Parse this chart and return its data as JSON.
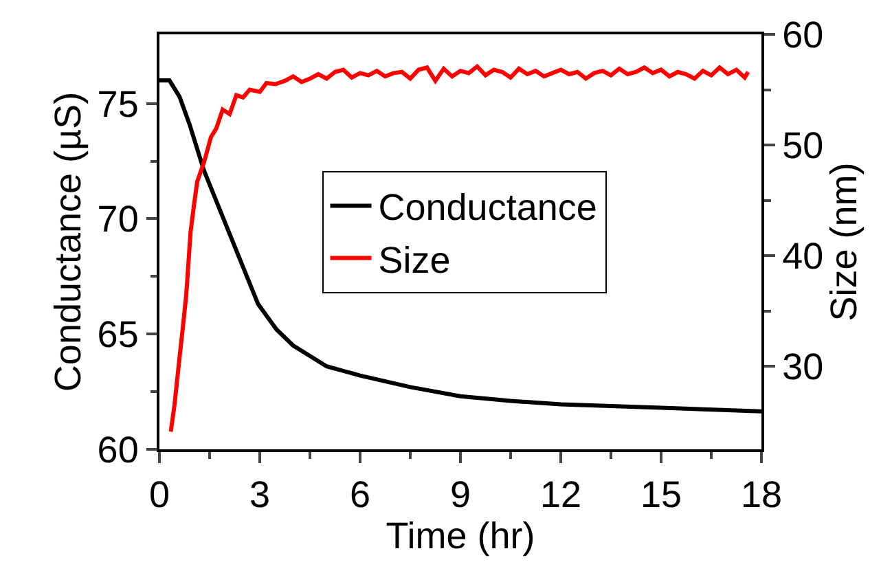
{
  "chart_data": {
    "type": "line",
    "xlabel": "Time (hr)",
    "ylabel": "Conductance (µS)",
    "y2label": "Size (nm)",
    "xlim": [
      0,
      18
    ],
    "xticks": [
      0,
      3,
      6,
      9,
      12,
      15,
      18
    ],
    "ylim": [
      60,
      78
    ],
    "yticks": [
      60,
      65,
      70,
      75
    ],
    "y2lim": [
      22.5,
      60
    ],
    "y2ticks": [
      30,
      40,
      50,
      60
    ],
    "grid": false,
    "legend": "right",
    "marker": "none",
    "line_style": "solid",
    "series": [
      {
        "name": "Conductance",
        "color": "#000000",
        "x": [
          0,
          0.3,
          0.6,
          0.9,
          1.33,
          2,
          2.95,
          3.5,
          4,
          5,
          6,
          7.5,
          9,
          10.5,
          12,
          15,
          18
        ],
        "values": [
          76.0,
          76.0,
          75.3,
          74.1,
          72.1,
          69.7,
          66.3,
          65.2,
          64.5,
          63.6,
          63.2,
          62.7,
          62.3,
          62.1,
          61.95,
          61.8,
          61.65
        ]
      },
      {
        "name": "Size",
        "color": "#ff0000",
        "axis": "y2",
        "x": [
          0.34,
          0.45,
          0.58,
          0.7,
          0.8,
          0.93,
          1.03,
          1.13,
          1.34,
          1.54,
          1.7,
          1.89,
          2.1,
          2.3,
          2.5,
          2.7,
          3.0,
          3.2,
          3.47,
          3.75,
          4.0,
          4.25,
          4.5,
          4.75,
          5.0,
          5.25,
          5.5,
          5.75,
          6.0,
          6.25,
          6.5,
          6.75,
          7.0,
          7.25,
          7.5,
          7.75,
          8.0,
          8.25,
          8.5,
          8.75,
          9.0,
          9.25,
          9.5,
          9.75,
          10.0,
          10.25,
          10.5,
          10.75,
          11.0,
          11.25,
          11.5,
          11.75,
          12.0,
          12.25,
          12.5,
          12.75,
          13.0,
          13.25,
          13.5,
          13.75,
          14.0,
          14.25,
          14.5,
          14.75,
          15.0,
          15.25,
          15.5,
          15.75,
          16.0,
          16.25,
          16.5,
          16.75,
          17.0,
          17.25,
          17.5,
          17.6
        ],
        "values": [
          24.1,
          26.5,
          30.2,
          33.5,
          36.4,
          42.1,
          44.5,
          46.7,
          48.5,
          50.7,
          51.5,
          53.2,
          52.8,
          54.5,
          54.3,
          55.0,
          54.8,
          55.6,
          55.5,
          55.8,
          56.2,
          55.7,
          56.0,
          56.4,
          56.0,
          56.6,
          56.8,
          56.1,
          56.5,
          56.3,
          56.7,
          56.2,
          56.5,
          56.6,
          56.0,
          56.8,
          57.0,
          55.8,
          56.9,
          56.2,
          56.7,
          56.5,
          57.1,
          56.3,
          56.8,
          56.6,
          56.1,
          56.9,
          56.4,
          56.7,
          56.2,
          56.5,
          56.8,
          56.4,
          56.6,
          56.0,
          56.5,
          56.7,
          56.3,
          56.9,
          56.4,
          56.6,
          57.0,
          56.5,
          56.8,
          56.2,
          56.6,
          56.4,
          56.0,
          56.7,
          56.3,
          57.0,
          56.4,
          56.8,
          56.1,
          56.6
        ]
      }
    ]
  }
}
